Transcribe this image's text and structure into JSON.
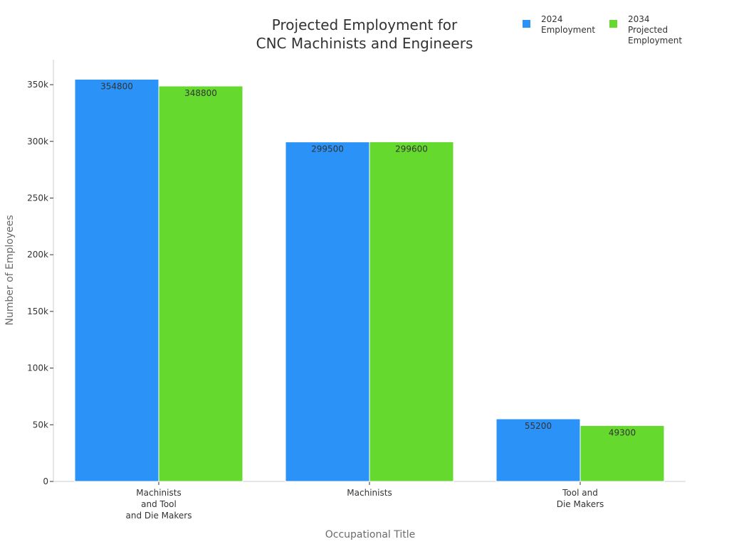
{
  "chart_data": {
    "type": "bar",
    "title": [
      "Projected Employment for",
      "CNC Machinists and Engineers"
    ],
    "xlabel": "Occupational Title",
    "ylabel": "Number of Employees",
    "categories": [
      [
        "Machinists",
        "and Tool",
        "and Die Makers"
      ],
      [
        "Machinists"
      ],
      [
        "Tool and",
        "Die Makers"
      ]
    ],
    "series": [
      {
        "name": [
          "2024",
          "Employment"
        ],
        "color": "#2b92f7",
        "values": [
          354800,
          299500,
          55200
        ],
        "labels": [
          "354800",
          "299500",
          "55200"
        ]
      },
      {
        "name": [
          "2034",
          "Projected",
          "Employment"
        ],
        "color": "#66d92e",
        "values": [
          348800,
          299600,
          49300
        ],
        "labels": [
          "348800",
          "299600",
          "49300"
        ]
      }
    ],
    "ylim": [
      0,
      372000
    ],
    "yticks": [
      0,
      50000,
      100000,
      150000,
      200000,
      250000,
      300000,
      350000
    ],
    "ytick_labels": [
      "0",
      "50k",
      "100k",
      "150k",
      "200k",
      "250k",
      "300k",
      "350k"
    ],
    "grid": false,
    "legend_position": "top-right",
    "axis_color": "#cccccc"
  }
}
